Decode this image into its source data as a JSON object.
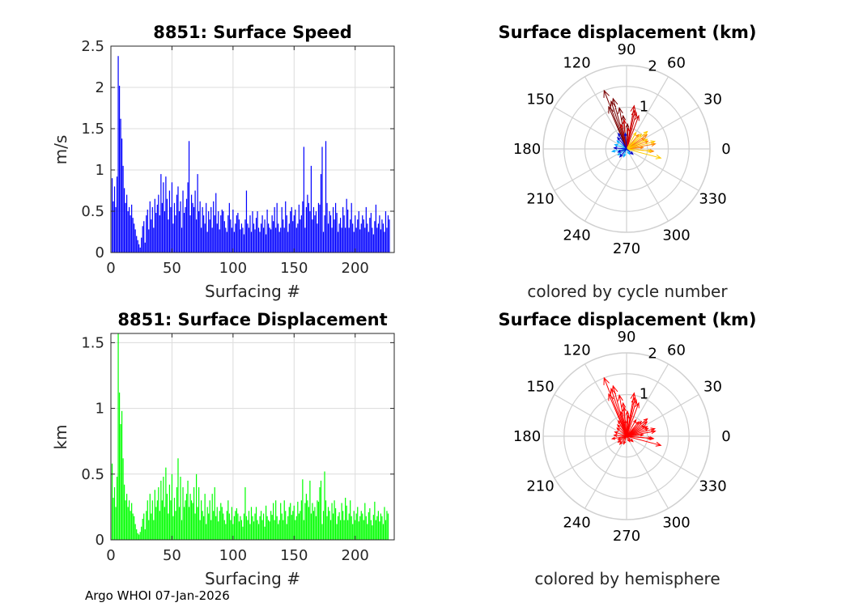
{
  "figure": {
    "footer": "Argo WHOI 07-Jan-2026"
  },
  "chart_data": [
    {
      "id": "speed",
      "type": "bar",
      "title": "8851: Surface Speed",
      "xlabel": "Surfacing #",
      "ylabel": "m/s",
      "xlim": [
        0,
        232
      ],
      "ylim": [
        0,
        2.5
      ],
      "xticks": [
        "0",
        "50",
        "100",
        "150",
        "200"
      ],
      "yticks": [
        "0",
        "0.5",
        "1",
        "1.5",
        "2",
        "2.5"
      ],
      "color": "#0000ff",
      "values": [
        0.9,
        0.62,
        0.8,
        0.55,
        0.92,
        2.38,
        2.02,
        1.62,
        1.38,
        1.05,
        0.78,
        0.6,
        0.7,
        0.5,
        0.55,
        0.45,
        0.58,
        0.42,
        0.35,
        0.28,
        0.2,
        0.15,
        0.1,
        0.06,
        0.18,
        0.32,
        0.38,
        0.12,
        0.45,
        0.52,
        0.28,
        0.62,
        0.4,
        0.55,
        0.3,
        0.65,
        0.48,
        0.58,
        0.7,
        0.45,
        0.95,
        0.6,
        0.85,
        0.5,
        0.92,
        0.65,
        0.4,
        0.75,
        0.55,
        0.85,
        0.35,
        0.6,
        0.45,
        0.7,
        0.8,
        0.5,
        0.62,
        0.3,
        0.75,
        0.48,
        0.55,
        0.65,
        0.85,
        1.35,
        0.45,
        0.7,
        0.6,
        0.55,
        0.75,
        0.4,
        0.95,
        0.5,
        0.62,
        0.3,
        0.55,
        0.45,
        0.35,
        0.6,
        0.25,
        0.5,
        0.4,
        0.55,
        0.3,
        0.62,
        0.45,
        0.72,
        0.35,
        0.5,
        0.28,
        0.45,
        0.52,
        0.5,
        0.38,
        0.3,
        0.25,
        0.45,
        0.6,
        0.4,
        0.3,
        0.52,
        0.25,
        0.35,
        0.45,
        0.48,
        0.4,
        0.28,
        0.35,
        0.3,
        0.22,
        0.4,
        0.75,
        0.35,
        0.3,
        0.45,
        0.25,
        0.5,
        0.35,
        0.28,
        0.42,
        0.5,
        0.3,
        0.25,
        0.35,
        0.45,
        0.3,
        0.4,
        0.22,
        0.52,
        0.35,
        0.3,
        0.28,
        0.45,
        0.38,
        0.55,
        0.3,
        0.6,
        0.35,
        0.25,
        0.3,
        0.55,
        0.4,
        0.3,
        0.62,
        0.45,
        0.25,
        0.35,
        0.5,
        0.55,
        0.38,
        0.45,
        0.52,
        0.3,
        0.35,
        0.58,
        0.4,
        0.45,
        0.62,
        1.28,
        0.3,
        0.55,
        0.7,
        0.6,
        0.5,
        1.05,
        0.4,
        0.55,
        0.45,
        0.5,
        0.35,
        0.6,
        0.58,
        0.95,
        1.28,
        0.25,
        0.45,
        1.35,
        0.6,
        0.35,
        0.5,
        0.45,
        0.3,
        0.55,
        0.4,
        0.6,
        0.48,
        0.25,
        0.35,
        0.42,
        0.3,
        0.55,
        0.45,
        0.3,
        0.65,
        0.52,
        0.3,
        0.4,
        0.6,
        0.35,
        0.25,
        0.45,
        0.3,
        0.4,
        0.5,
        0.28,
        0.35,
        0.45,
        0.4,
        0.3,
        0.55,
        0.35,
        0.25,
        0.42,
        0.48,
        0.3,
        0.22,
        0.38,
        0.58,
        0.3,
        0.35,
        0.45,
        0.28,
        0.4,
        0.35,
        0.25,
        0.5,
        0.3,
        0.45,
        0.4
      ]
    },
    {
      "id": "displacement",
      "type": "bar",
      "title": "8851: Surface Displacement",
      "xlabel": "Surfacing #",
      "ylabel": "km",
      "xlim": [
        0,
        232
      ],
      "ylim": [
        0,
        1.57
      ],
      "xticks": [
        "0",
        "50",
        "100",
        "150",
        "200"
      ],
      "yticks": [
        "0",
        "0.5",
        "1",
        "1.5"
      ],
      "color": "#00ff00",
      "values": [
        0.58,
        0.32,
        0.4,
        0.25,
        0.48,
        1.57,
        1.12,
        0.88,
        0.98,
        0.62,
        0.42,
        0.3,
        0.35,
        0.25,
        0.3,
        0.22,
        0.28,
        0.2,
        0.18,
        0.12,
        0.08,
        0.05,
        0.04,
        0.06,
        0.1,
        0.16,
        0.2,
        0.08,
        0.22,
        0.3,
        0.15,
        0.35,
        0.2,
        0.3,
        0.15,
        0.38,
        0.25,
        0.3,
        0.4,
        0.22,
        0.45,
        0.3,
        0.48,
        0.25,
        0.55,
        0.35,
        0.2,
        0.42,
        0.3,
        0.5,
        0.18,
        0.32,
        0.22,
        0.4,
        0.62,
        0.25,
        0.48,
        0.15,
        0.4,
        0.25,
        0.3,
        0.35,
        0.45,
        0.25,
        0.35,
        0.3,
        0.28,
        0.4,
        0.2,
        0.5,
        0.25,
        0.4,
        0.15,
        0.3,
        0.22,
        0.18,
        0.35,
        0.12,
        0.25,
        0.2,
        0.3,
        0.15,
        0.35,
        0.22,
        0.4,
        0.18,
        0.25,
        0.14,
        0.22,
        0.28,
        0.25,
        0.2,
        0.15,
        0.12,
        0.22,
        0.3,
        0.2,
        0.15,
        0.25,
        0.12,
        0.18,
        0.22,
        0.24,
        0.2,
        0.14,
        0.18,
        0.15,
        0.1,
        0.2,
        0.4,
        0.18,
        0.15,
        0.22,
        0.12,
        0.25,
        0.18,
        0.14,
        0.2,
        0.25,
        0.15,
        0.12,
        0.18,
        0.22,
        0.15,
        0.2,
        0.1,
        0.26,
        0.18,
        0.15,
        0.14,
        0.22,
        0.19,
        0.28,
        0.15,
        0.3,
        0.18,
        0.12,
        0.15,
        0.28,
        0.2,
        0.15,
        0.3,
        0.22,
        0.12,
        0.18,
        0.25,
        0.28,
        0.19,
        0.22,
        0.26,
        0.15,
        0.18,
        0.29,
        0.2,
        0.22,
        0.3,
        0.46,
        0.15,
        0.28,
        0.35,
        0.3,
        0.25,
        0.45,
        0.2,
        0.28,
        0.22,
        0.25,
        0.18,
        0.3,
        0.29,
        0.4,
        0.45,
        0.12,
        0.22,
        0.52,
        0.3,
        0.18,
        0.25,
        0.22,
        0.15,
        0.28,
        0.2,
        0.3,
        0.24,
        0.12,
        0.18,
        0.21,
        0.15,
        0.28,
        0.22,
        0.15,
        0.32,
        0.26,
        0.15,
        0.2,
        0.3,
        0.18,
        0.12,
        0.22,
        0.15,
        0.2,
        0.25,
        0.14,
        0.18,
        0.22,
        0.2,
        0.15,
        0.28,
        0.18,
        0.12,
        0.21,
        0.24,
        0.15,
        0.11,
        0.19,
        0.29,
        0.15,
        0.18,
        0.22,
        0.14,
        0.2,
        0.18,
        0.12,
        0.25,
        0.15,
        0.22,
        0.2
      ]
    },
    {
      "id": "polar_cycle",
      "type": "polar-quiver",
      "title": "Surface displacement (km)",
      "subtitle": "colored by cycle number",
      "rmax": 2,
      "rtick_labels": [
        "1",
        "2"
      ],
      "angle_labels": [
        "0",
        "30",
        "60",
        "90",
        "120",
        "150",
        "180",
        "210",
        "240",
        "270",
        "300",
        "330"
      ],
      "color_groups": [
        {
          "color": "#7a0000",
          "vectors": [
            [
              1.5,
              111
            ],
            [
              1.25,
              105
            ],
            [
              1.0,
              100
            ],
            [
              1.1,
              113
            ],
            [
              0.6,
              88
            ],
            [
              0.8,
              96
            ],
            [
              1.2,
              108
            ]
          ]
        },
        {
          "color": "#cc0000",
          "vectors": [
            [
              1.05,
              80
            ],
            [
              0.9,
              75
            ],
            [
              0.85,
              70
            ],
            [
              0.7,
              95
            ],
            [
              0.5,
              85
            ],
            [
              0.95,
              78
            ],
            [
              0.6,
              103
            ]
          ]
        },
        {
          "color": "#ff8000",
          "vectors": [
            [
              0.55,
              20
            ],
            [
              0.7,
              10
            ],
            [
              0.65,
              -5
            ],
            [
              0.5,
              30
            ],
            [
              0.45,
              50
            ],
            [
              0.6,
              35
            ],
            [
              0.4,
              5
            ]
          ]
        },
        {
          "color": "#ffcc00",
          "vectors": [
            [
              0.85,
              -15
            ],
            [
              0.65,
              40
            ],
            [
              0.55,
              25
            ],
            [
              0.7,
              15
            ],
            [
              0.6,
              -5
            ],
            [
              0.45,
              60
            ],
            [
              0.5,
              45
            ]
          ]
        },
        {
          "color": "#00aaff",
          "vectors": [
            [
              0.3,
              160
            ],
            [
              0.35,
              190
            ],
            [
              0.25,
              215
            ],
            [
              0.3,
              140
            ],
            [
              0.2,
              250
            ],
            [
              0.15,
              300
            ]
          ]
        },
        {
          "color": "#0000cc",
          "vectors": [
            [
              0.42,
              118
            ],
            [
              0.35,
              128
            ],
            [
              0.22,
              200
            ],
            [
              0.3,
              175
            ],
            [
              0.38,
              95
            ],
            [
              0.25,
              230
            ],
            [
              0.2,
              320
            ]
          ]
        }
      ]
    },
    {
      "id": "polar_hemisphere",
      "type": "polar-quiver",
      "title": "Surface displacement (km)",
      "subtitle": "colored by hemisphere",
      "rmax": 2,
      "rtick_labels": [
        "1",
        "2"
      ],
      "angle_labels": [
        "0",
        "30",
        "60",
        "90",
        "120",
        "150",
        "180",
        "210",
        "240",
        "270",
        "300",
        "330"
      ],
      "color_groups": [
        {
          "color": "#ff0000",
          "vectors": [
            [
              1.5,
              111
            ],
            [
              1.25,
              105
            ],
            [
              1.0,
              100
            ],
            [
              1.1,
              113
            ],
            [
              0.6,
              88
            ],
            [
              0.8,
              96
            ],
            [
              1.2,
              108
            ],
            [
              1.05,
              80
            ],
            [
              0.9,
              75
            ],
            [
              0.85,
              70
            ],
            [
              0.7,
              95
            ],
            [
              0.5,
              85
            ],
            [
              0.95,
              78
            ],
            [
              0.6,
              103
            ],
            [
              0.55,
              20
            ],
            [
              0.7,
              10
            ],
            [
              0.65,
              -5
            ],
            [
              0.5,
              30
            ],
            [
              0.45,
              50
            ],
            [
              0.6,
              35
            ],
            [
              0.4,
              5
            ],
            [
              0.85,
              -15
            ],
            [
              0.65,
              40
            ],
            [
              0.55,
              25
            ],
            [
              0.7,
              15
            ],
            [
              0.6,
              -5
            ],
            [
              0.45,
              60
            ],
            [
              0.5,
              45
            ],
            [
              0.3,
              160
            ],
            [
              0.35,
              190
            ],
            [
              0.25,
              215
            ],
            [
              0.3,
              140
            ],
            [
              0.2,
              250
            ],
            [
              0.15,
              300
            ],
            [
              0.42,
              118
            ],
            [
              0.35,
              128
            ],
            [
              0.22,
              200
            ],
            [
              0.3,
              175
            ],
            [
              0.38,
              95
            ],
            [
              0.25,
              230
            ],
            [
              0.2,
              320
            ]
          ]
        }
      ]
    }
  ]
}
